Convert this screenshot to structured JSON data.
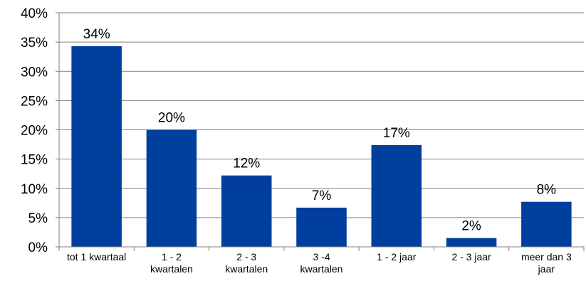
{
  "chart_data": {
    "type": "bar",
    "title": "",
    "xlabel": "",
    "ylabel": "",
    "ylim": [
      0,
      40
    ],
    "y_ticks": [
      "0%",
      "5%",
      "10%",
      "15%",
      "20%",
      "25%",
      "30%",
      "35%",
      "40%"
    ],
    "y_tick_values": [
      0,
      5,
      10,
      15,
      20,
      25,
      30,
      35,
      40
    ],
    "grid": "horizontal",
    "legend": "none",
    "categories": [
      [
        "tot 1 kwartaal"
      ],
      [
        "1 - 2",
        "kwartalen"
      ],
      [
        "2 - 3",
        "kwartalen"
      ],
      [
        "3 -4",
        "kwartalen"
      ],
      [
        "1 - 2 jaar"
      ],
      [
        "2 - 3 jaar"
      ],
      [
        "meer dan 3",
        "jaar"
      ]
    ],
    "values": [
      34.3,
      20.0,
      12.2,
      6.7,
      17.4,
      1.5,
      7.7
    ],
    "data_labels": [
      "34%",
      "20%",
      "12%",
      "7%",
      "17%",
      "2%",
      "8%"
    ],
    "colors": {
      "bar": "#003f9e",
      "grid": "#808080",
      "axis": "#808080"
    }
  }
}
